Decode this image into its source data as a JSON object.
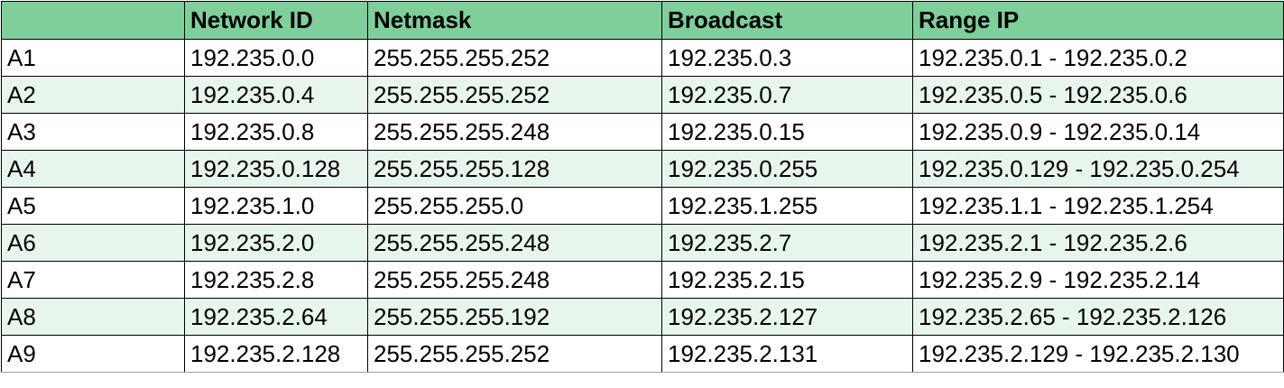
{
  "table": {
    "headers": [
      "",
      "Network ID",
      "Netmask",
      "Broadcast",
      "Range IP"
    ],
    "rows": [
      [
        "A1",
        "192.235.0.0",
        "255.255.255.252",
        "192.235.0.3",
        "192.235.0.1 - 192.235.0.2"
      ],
      [
        "A2",
        "192.235.0.4",
        "255.255.255.252",
        "192.235.0.7",
        "192.235.0.5 - 192.235.0.6"
      ],
      [
        "A3",
        "192.235.0.8",
        "255.255.255.248",
        "192.235.0.15",
        "192.235.0.9 - 192.235.0.14"
      ],
      [
        "A4",
        "192.235.0.128",
        "255.255.255.128",
        "192.235.0.255",
        "192.235.0.129 - 192.235.0.254"
      ],
      [
        "A5",
        "192.235.1.0",
        "255.255.255.0",
        "192.235.1.255",
        "192.235.1.1 - 192.235.1.254"
      ],
      [
        "A6",
        "192.235.2.0",
        "255.255.255.248",
        "192.235.2.7",
        "192.235.2.1 - 192.235.2.6"
      ],
      [
        "A7",
        "192.235.2.8",
        "255.255.255.248",
        "192.235.2.15",
        "192.235.2.9 - 192.235.2.14"
      ],
      [
        "A8",
        "192.235.2.64",
        "255.255.255.192",
        "192.235.2.127",
        "192.235.2.65 - 192.235.2.126"
      ],
      [
        "A9",
        "192.235.2.128",
        "255.255.255.252",
        "192.235.2.131",
        "192.235.2.129 - 192.235.2.130"
      ]
    ]
  },
  "colors": {
    "header_bg": "#7fcf9b",
    "stripe_bg": "#e8f5ec",
    "border": "#000000"
  }
}
